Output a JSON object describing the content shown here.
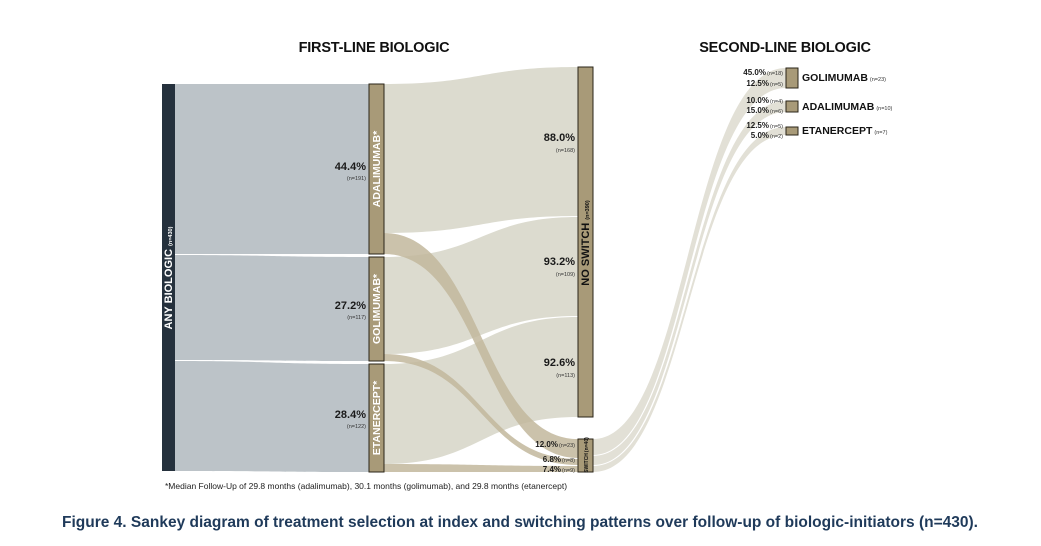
{
  "headers": {
    "first_line": "FIRST-LINE BIOLOGIC",
    "second_line": "SECOND-LINE BIOLOGIC"
  },
  "nodes": {
    "any": {
      "label": "ANY BIOLOGIC",
      "count": "(n=430)",
      "color": "#25313d"
    },
    "first_line": [
      {
        "id": "ada",
        "label": "ADALIMUMAB*",
        "pct": "44.4%",
        "count": "(n=191)"
      },
      {
        "id": "gol",
        "label": "GOLIMUMAB*",
        "pct": "27.2%",
        "count": "(n=117)"
      },
      {
        "id": "eta",
        "label": "ETANERCEPT*",
        "pct": "28.4%",
        "count": "(n=122)"
      }
    ],
    "no_switch": {
      "label": "NO SWITCH",
      "count": "(n=390)"
    },
    "switch": {
      "label": "SWITCH",
      "count": "(n=40)"
    },
    "second_line": [
      {
        "label": "GOLIMUMAB",
        "count": "(n=23)"
      },
      {
        "label": "ADALIMUMAB",
        "count": "(n=10)"
      },
      {
        "label": "ETANERCEPT",
        "count": "(n=7)"
      }
    ]
  },
  "no_switch_labels": [
    {
      "pct": "88.0%",
      "count": "(n=168)"
    },
    {
      "pct": "93.2%",
      "count": "(n=109)"
    },
    {
      "pct": "92.6%",
      "count": "(n=113)"
    }
  ],
  "switch_labels": [
    {
      "pct": "12.0%",
      "count": "(n=23)"
    },
    {
      "pct": "6.8%",
      "count": "(n=8)"
    },
    {
      "pct": "7.4%",
      "count": "(n=9)"
    }
  ],
  "second_line_labels": [
    {
      "pct": "45.0%",
      "count": "(n=18)"
    },
    {
      "pct": "12.5%",
      "count": "(n=5)"
    },
    {
      "pct": "10.0%",
      "count": "(n=4)"
    },
    {
      "pct": "15.0%",
      "count": "(n=6)"
    },
    {
      "pct": "12.5%",
      "count": "(n=5)"
    },
    {
      "pct": "5.0%",
      "count": "(n=2)"
    }
  ],
  "footnote": "*Median Follow-Up of 29.8 months (adalimumab), 30.1 months (golimumab), and 29.8 months (etanercept)",
  "caption": "Figure 4. Sankey diagram of treatment selection at index and switching patterns over follow-up of biologic-initiators (n=430).",
  "colors": {
    "any_node": "#25313d",
    "first_flow": "#bcc3c8",
    "node_fill": "#a89a78",
    "node_stroke": "#2a2418",
    "ns_flow": "#dcdbcf",
    "sw_flow": "#c2b79c",
    "second_flow": "#e2e0d6",
    "caption": "#1f3a5a"
  }
}
